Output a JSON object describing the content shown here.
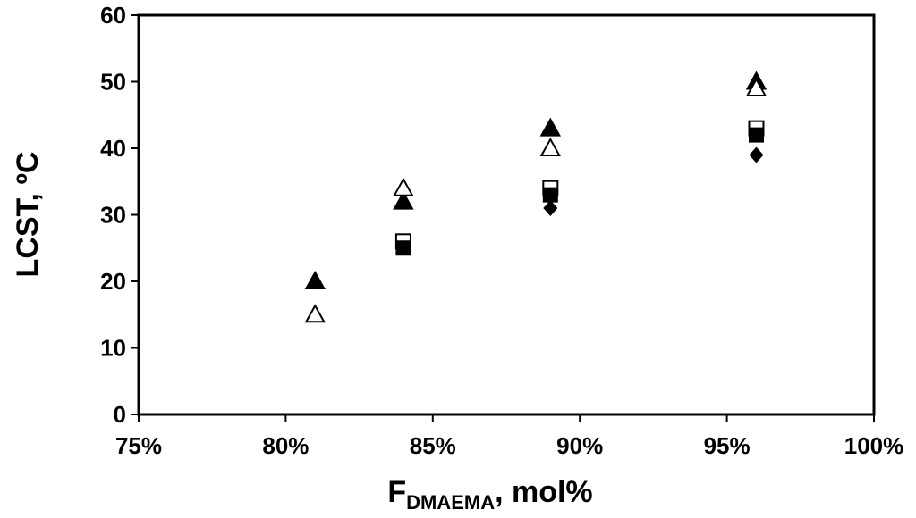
{
  "chart_data": {
    "type": "scatter",
    "title": "",
    "xlabel_main": "F",
    "xlabel_sub": "DMAEMA",
    "xlabel_rest": ", mol%",
    "ylabel": "LCST, ºC",
    "xlim": [
      0.75,
      1.0
    ],
    "ylim": [
      0,
      60
    ],
    "x_ticks": [
      0.75,
      0.8,
      0.85,
      0.9,
      0.95,
      1.0
    ],
    "x_tick_labels": [
      "75%",
      "80%",
      "85%",
      "90%",
      "95%",
      "100%"
    ],
    "y_ticks": [
      0,
      10,
      20,
      30,
      40,
      50,
      60
    ],
    "y_tick_labels": [
      "0",
      "10",
      "20",
      "30",
      "40",
      "50",
      "60"
    ],
    "grid": false,
    "legend": "none",
    "series": [
      {
        "marker": "filled-triangle",
        "color": "#000000",
        "points": [
          [
            0.81,
            20
          ],
          [
            0.84,
            32
          ],
          [
            0.89,
            43
          ],
          [
            0.96,
            50
          ]
        ]
      },
      {
        "marker": "open-triangle",
        "color": "#000000",
        "points": [
          [
            0.81,
            15
          ],
          [
            0.84,
            34
          ],
          [
            0.89,
            40
          ],
          [
            0.96,
            49
          ]
        ]
      },
      {
        "marker": "half-filled-square",
        "color": "#000000",
        "points": [
          [
            0.84,
            26
          ],
          [
            0.89,
            34
          ],
          [
            0.96,
            43
          ]
        ]
      },
      {
        "marker": "filled-square",
        "color": "#000000",
        "points": [
          [
            0.84,
            25
          ],
          [
            0.89,
            33
          ],
          [
            0.96,
            42
          ]
        ]
      },
      {
        "marker": "filled-diamond",
        "color": "#000000",
        "points": [
          [
            0.89,
            31
          ],
          [
            0.96,
            39
          ]
        ]
      }
    ]
  }
}
